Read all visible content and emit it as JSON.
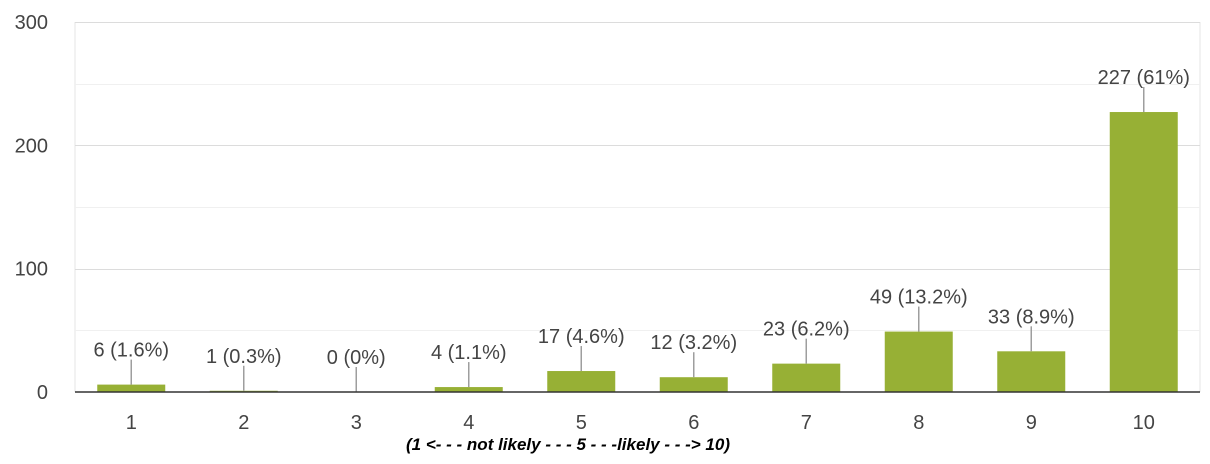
{
  "chart_data": {
    "type": "bar",
    "categories": [
      "1",
      "2",
      "3",
      "4",
      "5",
      "6",
      "7",
      "8",
      "9",
      "10"
    ],
    "values": [
      6,
      1,
      0,
      4,
      17,
      12,
      23,
      49,
      33,
      227
    ],
    "data_labels": [
      "6 (1.6%)",
      "1 (0.3%)",
      "0 (0%)",
      "4 (1.1%)",
      "17 (4.6%)",
      "12 (3.2%)",
      "23 (6.2%)",
      "49 (13.2%)",
      "33 (8.9%)",
      "227 (61%)"
    ],
    "y_ticks": [
      0,
      100,
      200,
      300
    ],
    "ylim": [
      0,
      300
    ],
    "xlabel": "(1 <- - - not likely - - - 5 - - -likely - - -> 10)",
    "grid": true,
    "colors": {
      "bar": "#97b035",
      "grid": "#e6e6e6",
      "baseline": "#333333",
      "leader": "#9e9e9e",
      "text": "#444444"
    }
  }
}
